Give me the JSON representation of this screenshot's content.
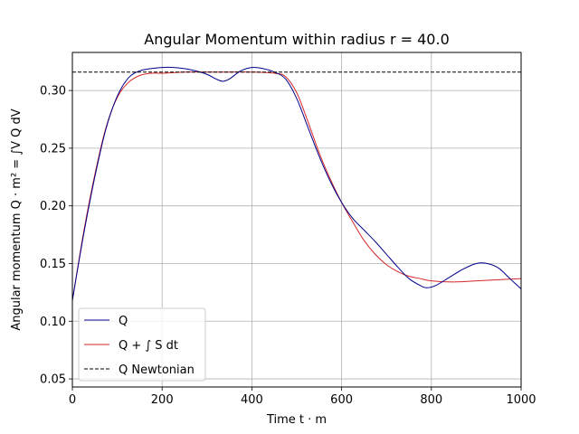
{
  "chart_data": {
    "type": "line",
    "title": "Angular Momentum within radius r = 40.0",
    "xlabel": "Time t · m",
    "ylabel": "Angular momentum Q · m² = ∫V Q dV",
    "xlim": [
      0,
      1000
    ],
    "ylim": [
      0.043,
      0.333
    ],
    "xticks": [
      0,
      200,
      400,
      600,
      800,
      1000
    ],
    "yticks": [
      0.05,
      0.1,
      0.15,
      0.2,
      0.25,
      0.3
    ],
    "xtick_labels": [
      "0",
      "200",
      "400",
      "600",
      "800",
      "1000"
    ],
    "ytick_labels": [
      "0.05",
      "0.10",
      "0.15",
      "0.20",
      "0.25",
      "0.30"
    ],
    "grid": true,
    "legend_position": "lower-left",
    "series": [
      {
        "name": "Q",
        "color": "#00008b",
        "style": "solid",
        "x": [
          0,
          25,
          50,
          75,
          100,
          125,
          150,
          175,
          200,
          225,
          250,
          275,
          300,
          320,
          335,
          350,
          375,
          400,
          425,
          450,
          475,
          500,
          525,
          550,
          575,
          600,
          625,
          650,
          675,
          700,
          725,
          750,
          775,
          790,
          810,
          840,
          870,
          900,
          925,
          950,
          975,
          1000
        ],
        "values": [
          0.118,
          0.175,
          0.225,
          0.267,
          0.295,
          0.311,
          0.317,
          0.319,
          0.32,
          0.32,
          0.319,
          0.317,
          0.314,
          0.31,
          0.308,
          0.31,
          0.317,
          0.32,
          0.319,
          0.316,
          0.31,
          0.293,
          0.268,
          0.243,
          0.221,
          0.203,
          0.189,
          0.179,
          0.169,
          0.158,
          0.147,
          0.137,
          0.131,
          0.129,
          0.131,
          0.138,
          0.145,
          0.15,
          0.15,
          0.146,
          0.137,
          0.128
        ]
      },
      {
        "name": "Q + ∫ S dt",
        "color": "#d62728",
        "style": "solid",
        "x": [
          0,
          25,
          50,
          75,
          100,
          125,
          150,
          175,
          200,
          250,
          300,
          350,
          400,
          450,
          475,
          500,
          525,
          550,
          575,
          600,
          625,
          650,
          675,
          700,
          725,
          750,
          775,
          800,
          850,
          900,
          950,
          1000
        ],
        "values": [
          0.118,
          0.177,
          0.227,
          0.268,
          0.294,
          0.307,
          0.313,
          0.315,
          0.315,
          0.316,
          0.316,
          0.316,
          0.316,
          0.315,
          0.312,
          0.298,
          0.273,
          0.246,
          0.223,
          0.203,
          0.186,
          0.17,
          0.158,
          0.149,
          0.143,
          0.139,
          0.137,
          0.135,
          0.134,
          0.135,
          0.136,
          0.137
        ]
      },
      {
        "name": "Q Newtonian",
        "color": "#000000",
        "style": "dashed",
        "x": [
          0,
          1000
        ],
        "values": [
          0.316,
          0.316
        ]
      }
    ]
  }
}
